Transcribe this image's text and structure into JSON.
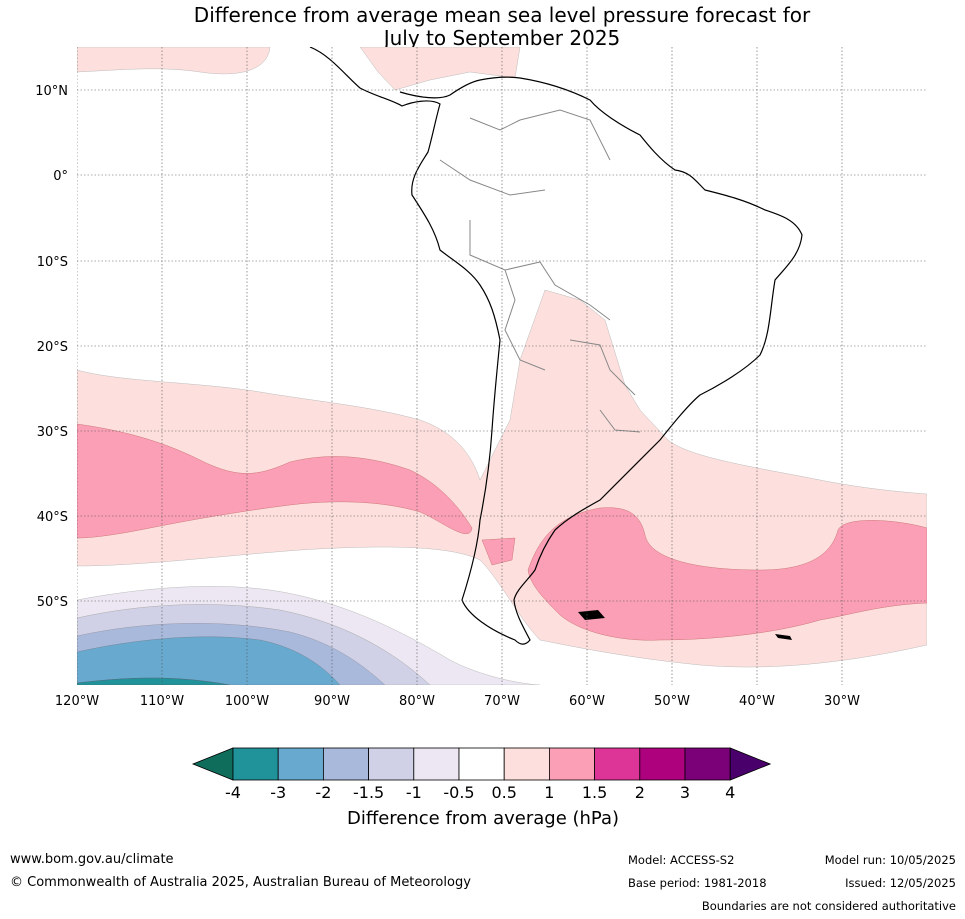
{
  "title_line1": "Difference from average mean sea level pressure forecast for",
  "title_line2": "July to September 2025",
  "map": {
    "lat_labels": [
      "10°N",
      "0°",
      "10°S",
      "20°S",
      "30°S",
      "40°S",
      "50°S"
    ],
    "lon_labels": [
      "120°W",
      "110°W",
      "100°W",
      "90°W",
      "80°W",
      "70°W",
      "60°W",
      "50°W",
      "40°W",
      "30°W"
    ]
  },
  "colorbar": {
    "label": "Difference from average (hPa)",
    "ticks": [
      "-4",
      "-3",
      "-2",
      "-1.5",
      "-1",
      "-0.5",
      "0.5",
      "1",
      "1.5",
      "2",
      "3",
      "4"
    ],
    "colors": [
      "#0f6d5c",
      "#1f9399",
      "#67a9cf",
      "#a8b9db",
      "#d0d1e6",
      "#ece7f2",
      "#ffffff",
      "#fde0dd",
      "#fa9fb5",
      "#dd3497",
      "#ae017e",
      "#7a0177",
      "#49006a"
    ]
  },
  "footer": {
    "website": "www.bom.gov.au/climate",
    "copyright": "© Commonwealth of Australia 2025, Australian Bureau of Meteorology",
    "model": "Model: ACCESS-S2",
    "base_period": "Base period: 1981-2018",
    "model_run": "Model run: 10/05/2025",
    "issued": "Issued: 12/05/2025",
    "boundaries_note": "Boundaries are not considered authoritative"
  }
}
